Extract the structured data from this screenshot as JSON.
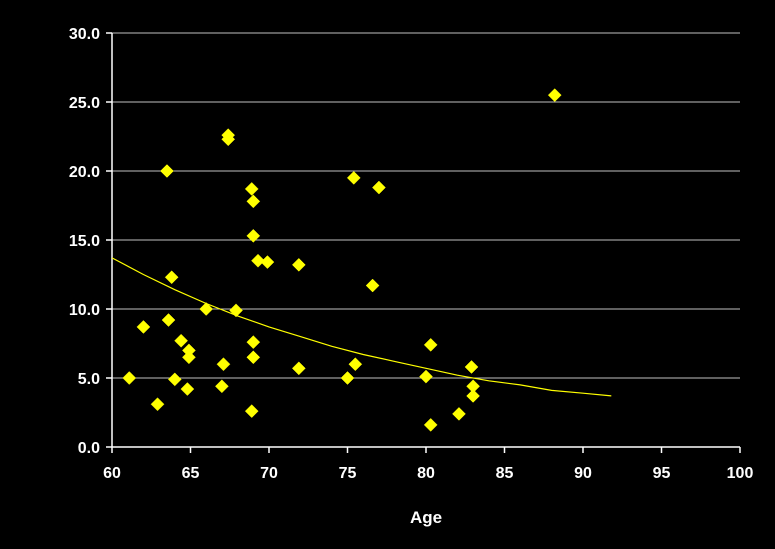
{
  "chart_data": {
    "type": "scatter",
    "title": "",
    "xlabel": "Age",
    "ylabel": "",
    "xlim": [
      60,
      100
    ],
    "ylim": [
      0,
      30
    ],
    "x_ticks": [
      60,
      65,
      70,
      75,
      80,
      85,
      90,
      95,
      100
    ],
    "y_ticks": [
      0,
      5,
      10,
      15,
      20,
      25,
      30
    ],
    "x_tick_labels": [
      "60",
      "65",
      "70",
      "75",
      "80",
      "85",
      "90",
      "95",
      "100"
    ],
    "y_tick_labels": [
      "0.0",
      "5.0",
      "10.0",
      "15.0",
      "20.0",
      "25.0",
      "30.0"
    ],
    "grid": "horizontal",
    "legend": "none",
    "colors": {
      "background": "#000000",
      "marker": "#ffff00",
      "trendline": "#ffff00",
      "gridline": "#c0c0c0",
      "axis": "#ffffff",
      "text": "#ffffff"
    },
    "marker_shape": "diamond",
    "series": [
      {
        "points": [
          [
            61.1,
            5.0
          ],
          [
            62.0,
            8.7
          ],
          [
            62.9,
            3.1
          ],
          [
            63.5,
            20.0
          ],
          [
            63.6,
            9.2
          ],
          [
            63.8,
            12.3
          ],
          [
            64.0,
            4.9
          ],
          [
            64.4,
            7.7
          ],
          [
            64.8,
            4.2
          ],
          [
            64.9,
            6.5
          ],
          [
            64.9,
            7.0
          ],
          [
            66.0,
            10.0
          ],
          [
            67.0,
            4.4
          ],
          [
            67.1,
            6.0
          ],
          [
            67.4,
            22.6
          ],
          [
            67.4,
            22.3
          ],
          [
            67.9,
            9.9
          ],
          [
            68.9,
            2.6
          ],
          [
            68.9,
            18.7
          ],
          [
            69.0,
            17.8
          ],
          [
            69.0,
            15.3
          ],
          [
            69.0,
            7.6
          ],
          [
            69.0,
            6.5
          ],
          [
            69.3,
            13.5
          ],
          [
            69.9,
            13.4
          ],
          [
            71.9,
            13.2
          ],
          [
            71.9,
            5.7
          ],
          [
            75.0,
            5.0
          ],
          [
            75.4,
            19.5
          ],
          [
            75.5,
            6.0
          ],
          [
            76.6,
            11.7
          ],
          [
            77.0,
            18.8
          ],
          [
            80.0,
            5.1
          ],
          [
            80.3,
            7.4
          ],
          [
            80.3,
            1.6
          ],
          [
            82.1,
            2.4
          ],
          [
            82.9,
            5.8
          ],
          [
            83.0,
            4.4
          ],
          [
            83.0,
            3.7
          ],
          [
            88.2,
            25.5
          ]
        ]
      }
    ],
    "trendline": {
      "type": "exponential",
      "points": [
        [
          60,
          13.7
        ],
        [
          62,
          12.5
        ],
        [
          64,
          11.4
        ],
        [
          66,
          10.4
        ],
        [
          68,
          9.5
        ],
        [
          70,
          8.7
        ],
        [
          72,
          8.0
        ],
        [
          74,
          7.3
        ],
        [
          76,
          6.7
        ],
        [
          78,
          6.2
        ],
        [
          80,
          5.7
        ],
        [
          82,
          5.2
        ],
        [
          84,
          4.8
        ],
        [
          86,
          4.5
        ],
        [
          88,
          4.1
        ],
        [
          90,
          3.9
        ],
        [
          91.8,
          3.7
        ]
      ]
    }
  }
}
